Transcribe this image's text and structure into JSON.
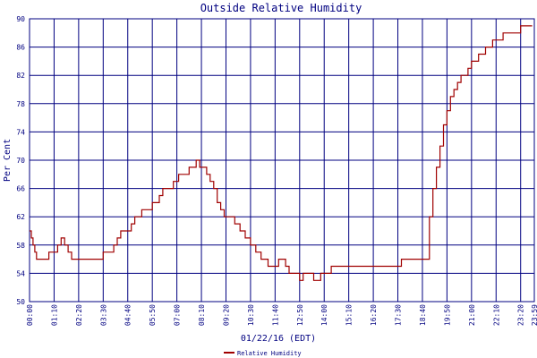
{
  "chart_data": {
    "type": "line",
    "title": "Outside Relative Humidity",
    "xlabel": "01/22/16 (EDT)",
    "ylabel": "Per Cent",
    "ylim": [
      50,
      90
    ],
    "yticks": [
      "50",
      "54",
      "58",
      "62",
      "66",
      "70",
      "74",
      "78",
      "82",
      "86",
      "90"
    ],
    "xlim": [
      "00:00",
      "23:59"
    ],
    "xticks": [
      "00:00",
      "01:10",
      "02:20",
      "03:30",
      "04:40",
      "05:50",
      "07:00",
      "08:10",
      "09:20",
      "10:30",
      "11:40",
      "12:50",
      "14:00",
      "15:10",
      "16:20",
      "17:30",
      "18:40",
      "19:50",
      "21:00",
      "22:10",
      "23:20",
      "23:59"
    ],
    "grid": true,
    "legend_position": "bottom-center",
    "colors": {
      "series": "#a00000",
      "grid": "#000080",
      "text": "#000080",
      "background": "#ffffff"
    },
    "series": [
      {
        "name": "Relative Humidity",
        "x": [
          "00:00",
          "00:05",
          "00:10",
          "00:15",
          "00:20",
          "00:30",
          "00:40",
          "00:55",
          "01:10",
          "01:20",
          "01:30",
          "01:40",
          "01:50",
          "02:00",
          "02:15",
          "02:30",
          "02:50",
          "03:10",
          "03:30",
          "03:45",
          "04:00",
          "04:10",
          "04:20",
          "04:35",
          "04:50",
          "05:00",
          "05:10",
          "05:20",
          "05:35",
          "05:50",
          "06:00",
          "06:10",
          "06:20",
          "06:35",
          "06:50",
          "07:05",
          "07:20",
          "07:35",
          "07:45",
          "07:55",
          "08:05",
          "08:15",
          "08:25",
          "08:35",
          "08:45",
          "08:55",
          "09:05",
          "09:15",
          "09:30",
          "09:45",
          "10:00",
          "10:15",
          "10:30",
          "10:45",
          "11:00",
          "11:10",
          "11:20",
          "11:30",
          "11:40",
          "11:50",
          "12:00",
          "12:10",
          "12:20",
          "12:30",
          "12:40",
          "12:50",
          "13:00",
          "13:10",
          "13:20",
          "13:30",
          "13:40",
          "13:50",
          "14:00",
          "14:10",
          "14:20",
          "14:30",
          "14:40",
          "14:50",
          "15:00",
          "15:20",
          "15:40",
          "16:00",
          "16:20",
          "16:40",
          "17:00",
          "17:20",
          "17:40",
          "18:00",
          "18:20",
          "18:40",
          "19:00",
          "19:10",
          "19:20",
          "19:30",
          "19:40",
          "19:50",
          "20:00",
          "20:10",
          "20:20",
          "20:30",
          "20:40",
          "20:50",
          "21:00",
          "21:10",
          "21:20",
          "21:30",
          "21:40",
          "21:50",
          "22:00",
          "22:10",
          "22:20",
          "22:30",
          "22:40",
          "22:50",
          "23:00",
          "23:10",
          "23:20",
          "23:30",
          "23:40",
          "23:50"
        ],
        "values": [
          60,
          59,
          58,
          57,
          56,
          56,
          56,
          57,
          57,
          58,
          59,
          58,
          57,
          56,
          56,
          56,
          56,
          56,
          57,
          57,
          58,
          59,
          60,
          60,
          61,
          62,
          62,
          63,
          63,
          64,
          64,
          65,
          66,
          66,
          67,
          68,
          68,
          69,
          69,
          70,
          69,
          69,
          68,
          67,
          66,
          64,
          63,
          62,
          62,
          61,
          60,
          59,
          58,
          57,
          56,
          56,
          55,
          55,
          55,
          56,
          56,
          55,
          54,
          54,
          54,
          53,
          54,
          54,
          54,
          53,
          53,
          54,
          54,
          54,
          55,
          55,
          55,
          55,
          55,
          55,
          55,
          55,
          55,
          55,
          55,
          55,
          56,
          56,
          56,
          56,
          62,
          66,
          69,
          72,
          75,
          77,
          79,
          80,
          81,
          82,
          82,
          83,
          84,
          84,
          85,
          85,
          86,
          86,
          87,
          87,
          87,
          88,
          88,
          88,
          88,
          88,
          89,
          89,
          89,
          89
        ]
      }
    ]
  }
}
